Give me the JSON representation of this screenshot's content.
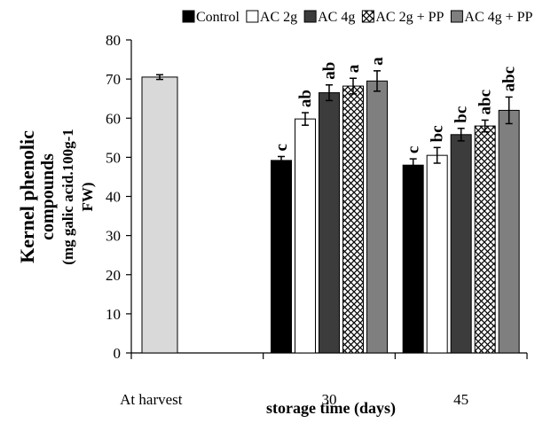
{
  "chart_data": {
    "type": "bar",
    "xlabel": "storage time (days)",
    "ylabel": [
      "Kernel phenolic",
      "compounds",
      "(mg galic acid.100g-1",
      "FW)"
    ],
    "ylim": [
      0,
      80
    ],
    "yticks": [
      0,
      10,
      20,
      30,
      40,
      50,
      60,
      70,
      80
    ],
    "grid": false,
    "legend_position": "top",
    "categories": [
      "At harvest",
      "30",
      "45"
    ],
    "series": [
      {
        "name": "Control",
        "color": "#000000",
        "pattern": "solid",
        "values": [
          70.5,
          49.2,
          48.0
        ],
        "errors": [
          0.6,
          1.0,
          1.6
        ],
        "labels": [
          "",
          "c",
          "c"
        ]
      },
      {
        "name": "AC 2g",
        "color": "#ffffff",
        "pattern": "hollow",
        "values": [
          null,
          59.8,
          50.5
        ],
        "errors": [
          null,
          1.6,
          2.0
        ],
        "labels": [
          "",
          "ab",
          "bc"
        ]
      },
      {
        "name": "AC 4g",
        "color": "#3c3c3c",
        "pattern": "solid",
        "values": [
          null,
          66.5,
          55.8
        ],
        "errors": [
          null,
          2.0,
          1.6
        ],
        "labels": [
          "",
          "ab",
          "bc"
        ]
      },
      {
        "name": "AC 2g + PP",
        "color": "#ffffff",
        "pattern": "crosshatch",
        "values": [
          null,
          68.2,
          58.0
        ],
        "errors": [
          null,
          2.0,
          1.5
        ],
        "labels": [
          "",
          "a",
          "abc"
        ]
      },
      {
        "name": "AC 4g + PP",
        "color": "#7f7f7f",
        "pattern": "solid",
        "values": [
          null,
          69.5,
          62.0
        ],
        "errors": [
          null,
          2.6,
          3.4
        ],
        "labels": [
          "",
          "a",
          "abc"
        ]
      }
    ],
    "harvest_bar_color": "#d9d9d9"
  }
}
